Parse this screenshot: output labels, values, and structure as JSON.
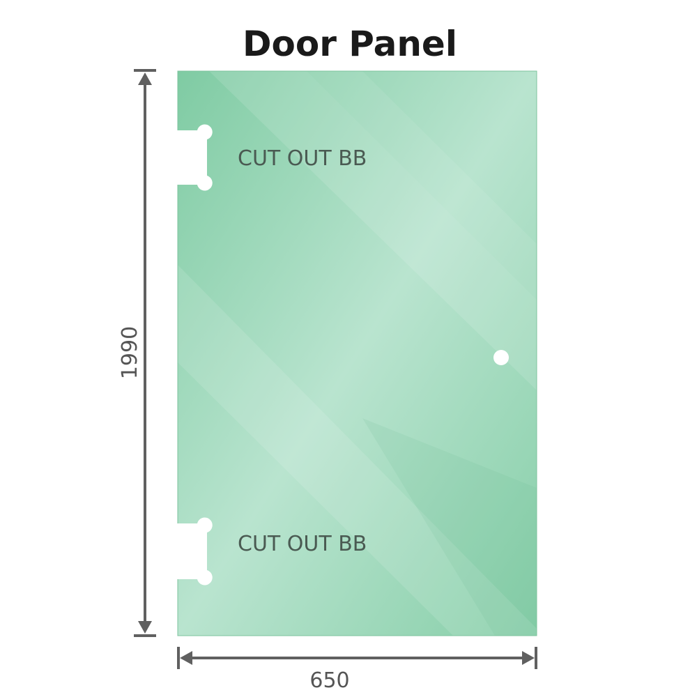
{
  "title": "Door Panel",
  "cutouts": [
    {
      "label": "CUT OUT BB"
    },
    {
      "label": "CUT OUT BB"
    }
  ],
  "dimensions": {
    "height": "1990",
    "width": "650"
  },
  "colors": {
    "glass": "#88cfa9",
    "glass_light": "#bde6d2",
    "dimension_line": "#606060"
  }
}
